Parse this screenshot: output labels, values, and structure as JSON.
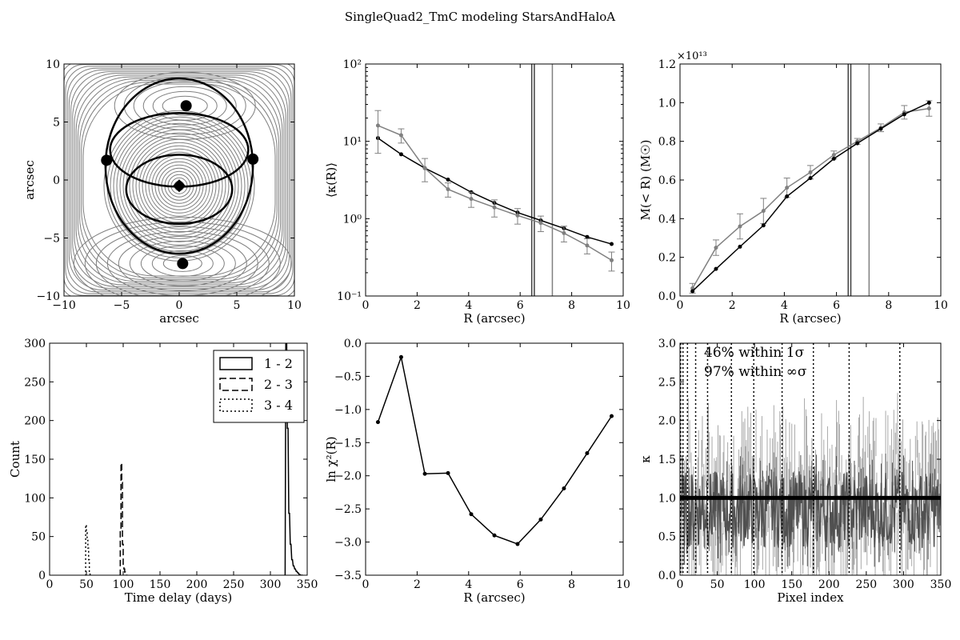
{
  "figure": {
    "title": "SingleQuad2_TmC modeling StarsAndHaloA"
  },
  "chart_data": [
    {
      "type": "contour",
      "panel": "top-left",
      "xlabel": "arcsec",
      "ylabel": "arcsec",
      "xlim": [
        -10,
        10
      ],
      "ylim": [
        -10,
        10
      ],
      "xticks": [
        -10,
        -5,
        0,
        5,
        10
      ],
      "yticks": [
        -10,
        -5,
        0,
        5,
        10
      ],
      "xtick_labels": [
        "−10",
        "−5",
        "0",
        "5",
        "10"
      ],
      "ytick_labels": [
        "−10",
        "−5",
        "0",
        "5",
        "10"
      ],
      "images": [
        {
          "x": 0.6,
          "y": 6.4
        },
        {
          "x": -6.3,
          "y": 1.7
        },
        {
          "x": 6.4,
          "y": 1.8
        },
        {
          "x": 0.3,
          "y": -7.2
        }
      ],
      "source": {
        "x": 0.0,
        "y": -0.5,
        "marker": "diamond"
      },
      "critical_curves": "black",
      "contours": "gray"
    },
    {
      "type": "line",
      "panel": "top-middle",
      "xlabel": "R (arcsec)",
      "ylabel": "⟨κ(R)⟩",
      "xlim": [
        0,
        10
      ],
      "ylim": [
        0.1,
        100
      ],
      "yscale": "log",
      "xticks": [
        0,
        2,
        4,
        6,
        8,
        10
      ],
      "ytick_labels": [
        "10⁻¹",
        "10⁰",
        "10¹",
        "10²"
      ],
      "vlines": [
        6.45,
        6.55,
        7.25
      ],
      "series": [
        {
          "color": "#000000",
          "x": [
            0.48,
            1.38,
            2.3,
            3.2,
            4.1,
            5.0,
            5.9,
            6.8,
            7.7,
            8.6,
            9.55
          ],
          "y": [
            11.0,
            6.8,
            4.5,
            3.2,
            2.2,
            1.6,
            1.2,
            0.95,
            0.75,
            0.58,
            0.47
          ]
        },
        {
          "color": "#808080",
          "x": [
            0.48,
            1.38,
            2.3,
            3.2,
            4.1,
            5.0,
            5.9,
            6.8,
            7.7,
            8.6,
            9.55
          ],
          "y": [
            16.0,
            12.0,
            4.5,
            2.4,
            1.8,
            1.4,
            1.1,
            0.88,
            0.65,
            0.45,
            0.29
          ],
          "err": [
            9.0,
            2.5,
            1.5,
            0.5,
            0.4,
            0.35,
            0.25,
            0.2,
            0.15,
            0.1,
            0.08
          ]
        }
      ]
    },
    {
      "type": "line",
      "panel": "top-right",
      "xlabel": "R (arcsec)",
      "ylabel": "M(< R) (M☉)",
      "multiplier": "×10¹³",
      "xlim": [
        0,
        10
      ],
      "ylim": [
        0,
        1.2
      ],
      "xticks": [
        0,
        2,
        4,
        6,
        8,
        10
      ],
      "yticks": [
        0.0,
        0.2,
        0.4,
        0.6,
        0.8,
        1.0,
        1.2
      ],
      "ytick_labels": [
        "0.0",
        "0.2",
        "0.4",
        "0.6",
        "0.8",
        "1.0",
        "1.2"
      ],
      "vlines": [
        6.45,
        6.55,
        7.25
      ],
      "series": [
        {
          "color": "#000000",
          "x": [
            0.48,
            1.38,
            2.3,
            3.2,
            4.1,
            5.0,
            5.9,
            6.8,
            7.7,
            8.6,
            9.55
          ],
          "y": [
            0.025,
            0.14,
            0.255,
            0.365,
            0.515,
            0.61,
            0.71,
            0.79,
            0.865,
            0.94,
            1.0
          ]
        },
        {
          "color": "#808080",
          "x": [
            0.48,
            1.38,
            2.3,
            3.2,
            4.1,
            5.0,
            5.9,
            6.8,
            7.7,
            8.6,
            9.55
          ],
          "y": [
            0.04,
            0.25,
            0.36,
            0.44,
            0.56,
            0.64,
            0.73,
            0.8,
            0.87,
            0.95,
            0.97
          ],
          "err": [
            0.025,
            0.04,
            0.065,
            0.065,
            0.05,
            0.035,
            0.02,
            0.015,
            0.02,
            0.035,
            0.04
          ]
        }
      ]
    },
    {
      "type": "histogram",
      "panel": "bottom-left",
      "xlabel": "Time delay (days)",
      "ylabel": "Count",
      "xlim": [
        0,
        350
      ],
      "ylim": [
        0,
        300
      ],
      "xticks": [
        0,
        50,
        100,
        150,
        200,
        250,
        300,
        350
      ],
      "yticks": [
        0,
        50,
        100,
        150,
        200,
        250,
        300
      ],
      "legend_position": "top-right",
      "series": [
        {
          "name": "1 - 2",
          "dash": "solid",
          "x": [
            319,
            321,
            323,
            325,
            327,
            329,
            331,
            333,
            335,
            337,
            339,
            341,
            343
          ],
          "counts": [
            0,
            320,
            190,
            80,
            40,
            20,
            12,
            8,
            5,
            3,
            1,
            0,
            0
          ]
        },
        {
          "name": "2 - 3",
          "dash": "dashed",
          "x": [
            95,
            96,
            97,
            98,
            99,
            100,
            101,
            102,
            103,
            104,
            105
          ],
          "counts": [
            0,
            60,
            145,
            120,
            40,
            12,
            8,
            4,
            2,
            0,
            0
          ]
        },
        {
          "name": "3 - 4",
          "dash": "dotted",
          "x": [
            48,
            49,
            50,
            51,
            52,
            53,
            54,
            55,
            56
          ],
          "counts": [
            0,
            65,
            55,
            45,
            35,
            20,
            5,
            0,
            0
          ]
        }
      ]
    },
    {
      "type": "line",
      "panel": "bottom-middle",
      "xlabel": "R (arcsec)",
      "ylabel": "ln χ²(R)",
      "xlim": [
        0,
        10
      ],
      "ylim": [
        -3.5,
        0.0
      ],
      "xticks": [
        0,
        2,
        4,
        6,
        8,
        10
      ],
      "yticks": [
        0.0,
        -0.5,
        -1.0,
        -1.5,
        -2.0,
        -2.5,
        -3.0,
        -3.5
      ],
      "ytick_labels": [
        "0.0",
        "−0.5",
        "−1.0",
        "−1.5",
        "−2.0",
        "−2.5",
        "−3.0",
        "−3.5"
      ],
      "series": [
        {
          "color": "#000000",
          "x": [
            0.48,
            1.38,
            2.3,
            3.2,
            4.1,
            5.0,
            5.9,
            6.8,
            7.7,
            8.6,
            9.55
          ],
          "y": [
            -1.19,
            -0.21,
            -1.97,
            -1.96,
            -2.58,
            -2.9,
            -3.03,
            -2.66,
            -2.19,
            -1.66,
            -1.1
          ]
        }
      ]
    },
    {
      "type": "scatter",
      "panel": "bottom-right",
      "xlabel": "Pixel index",
      "ylabel": "κ",
      "xlim": [
        0,
        350
      ],
      "ylim": [
        0,
        3.0
      ],
      "xticks": [
        0,
        50,
        100,
        150,
        200,
        250,
        300,
        350
      ],
      "yticks": [
        0.0,
        0.5,
        1.0,
        1.5,
        2.0,
        2.5,
        3.0
      ],
      "ytick_labels": [
        "0.0",
        "0.5",
        "1.0",
        "1.5",
        "2.0",
        "2.5",
        "3.0"
      ],
      "hline": 1.0,
      "vlines_dotted": [
        1,
        4,
        10,
        21,
        37,
        69,
        99,
        137,
        179,
        227,
        295
      ],
      "annotations": [
        "46% within 1σ",
        "97% within ∞σ"
      ],
      "n_pixels": 350
    }
  ]
}
